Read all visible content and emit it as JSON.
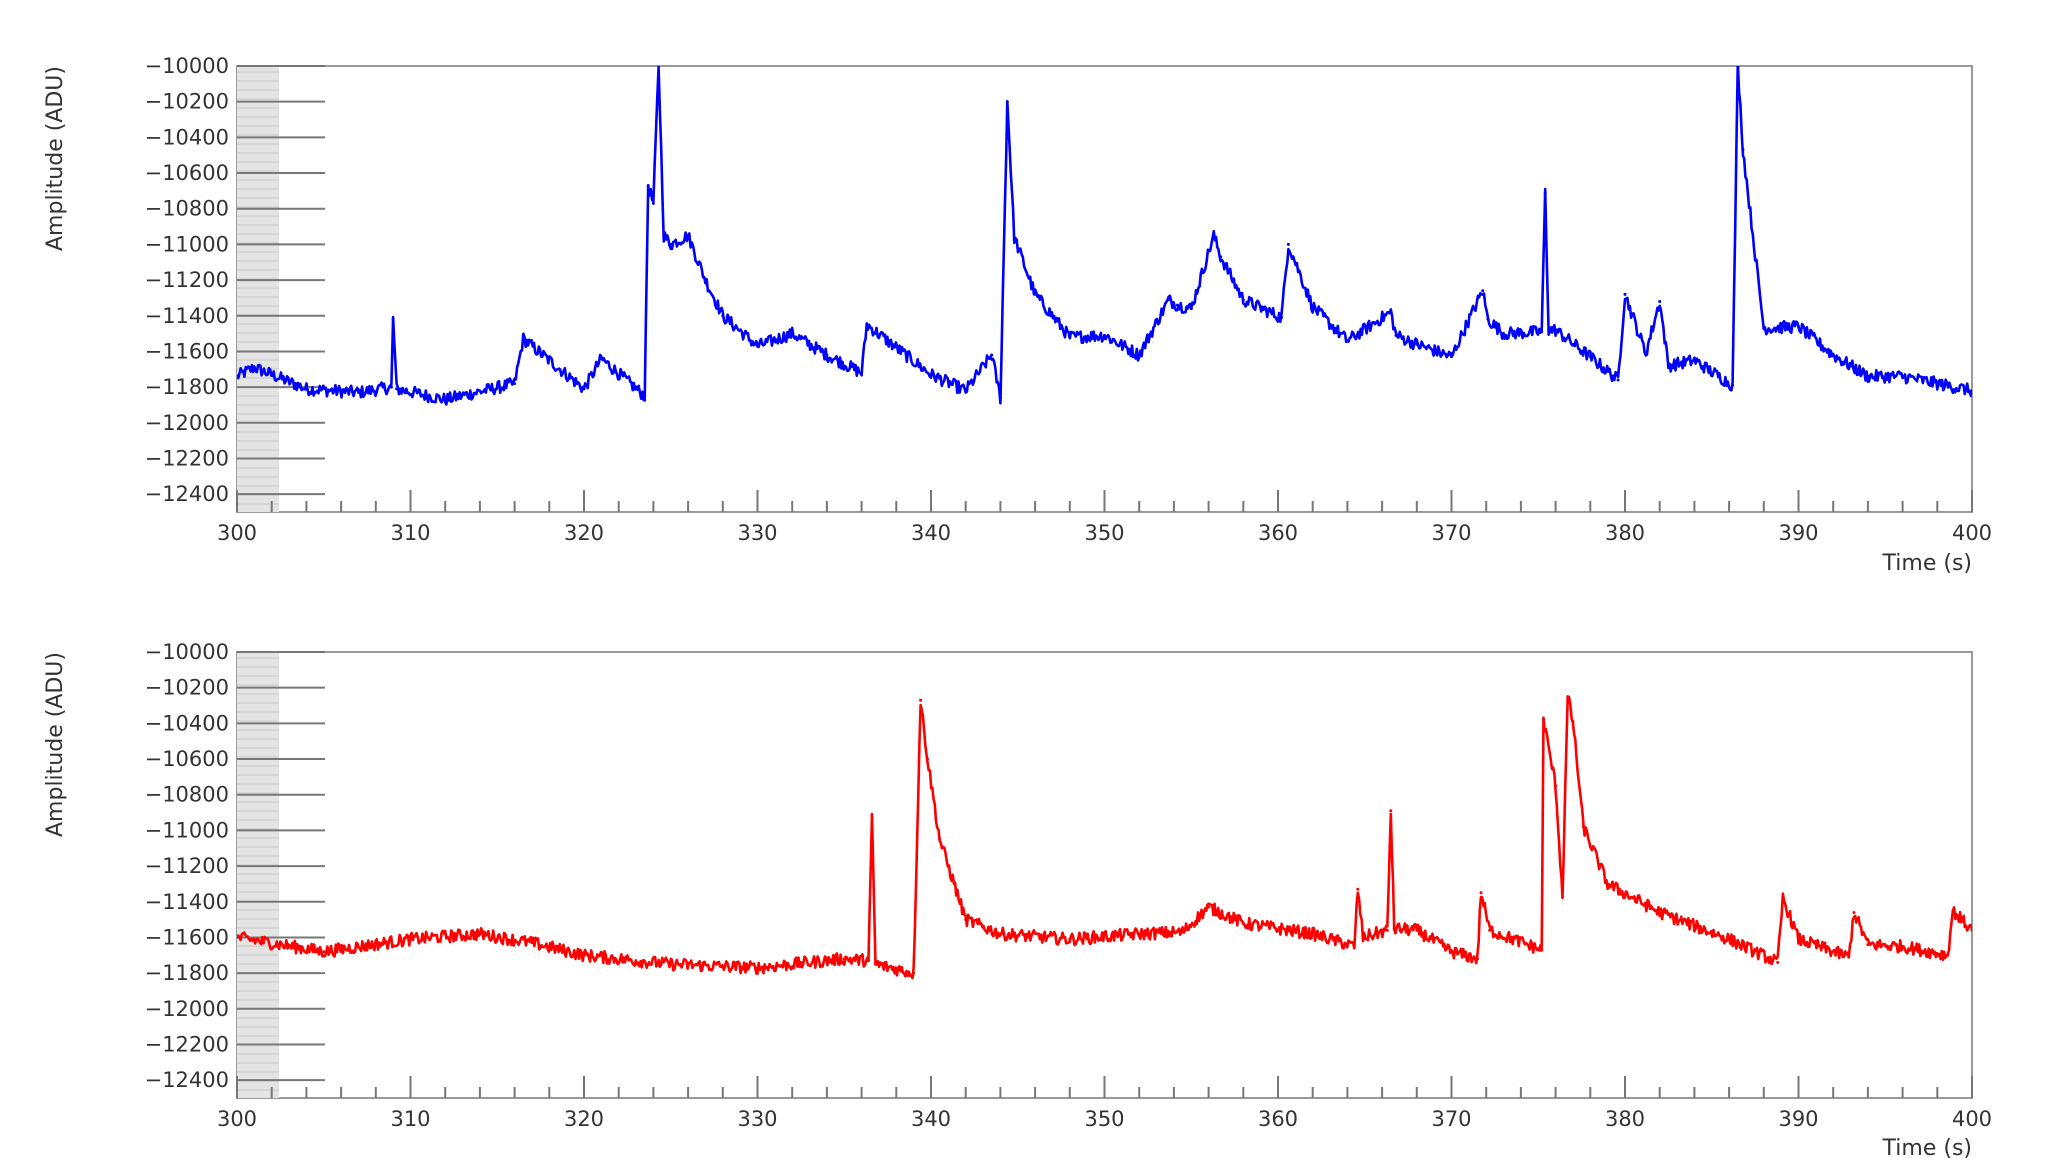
{
  "chart_data": [
    {
      "type": "line",
      "xlabel": "Time (s)",
      "ylabel": "Amplitude (ADU)",
      "xlim": [
        300,
        400
      ],
      "ylim": [
        -12500,
        -10000
      ],
      "x_ticks": [
        300,
        310,
        320,
        330,
        340,
        350,
        360,
        370,
        380,
        390,
        400
      ],
      "y_ticks": [
        -10000,
        -10200,
        -10400,
        -10600,
        -10800,
        -11000,
        -11200,
        -11400,
        -11600,
        -11800,
        -12000,
        -12200,
        -12400
      ],
      "grid": false,
      "legend": "none",
      "series": [
        {
          "color": "#0000ff",
          "x": [
            300,
            301,
            304,
            307,
            308.9,
            309,
            309.2,
            312,
            316,
            316.5,
            320,
            321,
            323.5,
            323.7,
            324,
            324.3,
            324.6,
            325,
            326,
            327,
            328,
            330,
            332,
            334,
            336,
            336.3,
            340,
            342,
            343.5,
            344,
            344.4,
            344.8,
            346,
            348,
            350,
            352,
            353.7,
            354.2,
            355,
            356.3,
            356.7,
            358,
            360.2,
            360.6,
            362,
            364,
            366.5,
            366.8,
            368,
            370,
            371.8,
            372.1,
            373,
            375.2,
            375.4,
            375.6,
            376,
            378,
            379.6,
            380,
            381.2,
            382,
            382.5,
            384,
            386.2,
            386.5,
            386.8,
            388,
            390,
            392,
            394,
            396,
            398,
            400
          ],
          "y": [
            -11740,
            -11690,
            -11810,
            -11830,
            -11800,
            -11420,
            -11810,
            -11870,
            -11780,
            -11530,
            -11810,
            -11640,
            -11850,
            -10670,
            -10770,
            -10000,
            -10950,
            -11000,
            -10950,
            -11200,
            -11400,
            -11570,
            -11500,
            -11620,
            -11720,
            -11450,
            -11730,
            -11820,
            -11620,
            -11860,
            -10200,
            -10960,
            -11280,
            -11520,
            -11510,
            -11620,
            -11310,
            -11340,
            -11360,
            -10950,
            -11070,
            -11310,
            -11410,
            -11000,
            -11350,
            -11540,
            -11380,
            -11510,
            -11560,
            -11630,
            -11260,
            -11420,
            -11500,
            -11490,
            -10710,
            -11480,
            -11480,
            -11630,
            -11760,
            -11280,
            -11610,
            -11320,
            -11680,
            -11650,
            -11790,
            -10000,
            -10470,
            -11470,
            -11460,
            -11620,
            -11740,
            -11740,
            -11780,
            -11820
          ]
        }
      ]
    },
    {
      "type": "line",
      "xlabel": "Time (s)",
      "ylabel": "Amplitude (ADU)",
      "xlim": [
        300,
        400
      ],
      "ylim": [
        -12500,
        -10000
      ],
      "x_ticks": [
        300,
        310,
        320,
        330,
        340,
        350,
        360,
        370,
        380,
        390,
        400
      ],
      "y_ticks": [
        -10000,
        -10200,
        -10400,
        -10600,
        -10800,
        -11000,
        -11200,
        -11400,
        -11600,
        -11800,
        -12000,
        -12200,
        -12400
      ],
      "grid": false,
      "legend": "none",
      "series": [
        {
          "color": "#ff0000",
          "x": [
            300,
            305,
            310,
            314,
            317,
            320,
            325,
            330,
            335,
            336.4,
            336.6,
            336.8,
            339,
            339.4,
            339.8,
            340.5,
            342,
            344,
            348,
            352,
            354.5,
            356,
            358,
            362,
            364.4,
            364.6,
            364.9,
            366.3,
            366.5,
            366.7,
            368,
            370,
            371.5,
            371.7,
            372.2,
            375.2,
            375.3,
            376,
            376.4,
            376.7,
            377,
            377.6,
            379,
            382,
            386,
            388.8,
            389.1,
            390,
            392.9,
            393.2,
            394,
            396,
            398.6,
            398.9,
            400
          ],
          "y": [
            -11600,
            -11680,
            -11610,
            -11580,
            -11630,
            -11700,
            -11750,
            -11770,
            -11720,
            -11730,
            -10920,
            -11750,
            -11800,
            -10270,
            -10600,
            -11050,
            -11500,
            -11580,
            -11610,
            -11580,
            -11570,
            -11430,
            -11520,
            -11580,
            -11650,
            -11330,
            -11600,
            -11560,
            -10890,
            -11550,
            -11560,
            -11680,
            -11720,
            -11350,
            -11560,
            -11670,
            -10380,
            -10750,
            -11370,
            -10250,
            -10390,
            -10980,
            -11300,
            -11460,
            -11610,
            -11740,
            -11380,
            -11610,
            -11710,
            -11460,
            -11640,
            -11650,
            -11700,
            -11450,
            -11560
          ]
        }
      ]
    }
  ]
}
